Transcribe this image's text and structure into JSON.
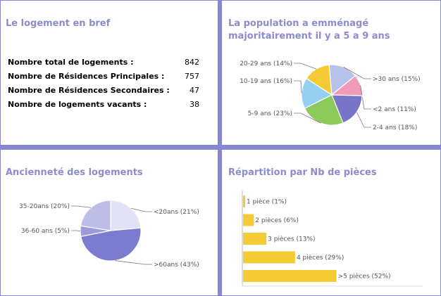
{
  "panels": {
    "summary": {
      "title": "Le logement en bref",
      "rows": [
        {
          "label": "Nombre total de logements :",
          "value": "842"
        },
        {
          "label": "Nombre de Résidences Principales :",
          "value": "757"
        },
        {
          "label": "Nombre de Résidences Secondaires :",
          "value": "47"
        },
        {
          "label": "Nombre de logements vacants :",
          "value": "38"
        }
      ]
    },
    "population": {
      "title": "La population a emménagé majoritairement il y a 5 a 9 ans"
    },
    "anciennete": {
      "title": "Ancienneté des logements"
    },
    "pieces": {
      "title": "Répartition par Nb de pièces"
    }
  },
  "chart_data": [
    {
      "type": "pie",
      "title": "La population a emménagé majoritairement il y a 5 a 9 ans",
      "labels": [
        "20-29 ans (14%)",
        ">30 ans (15%)",
        "<2 ans (11%)",
        "2-4 ans (18%)",
        "5-9 ans (23%)",
        "10-19 ans (16%)"
      ],
      "categories": [
        "20-29 ans",
        ">30 ans",
        "<2 ans",
        "2-4 ans",
        "5-9 ans",
        "10-19 ans"
      ],
      "values": [
        14,
        15,
        11,
        18,
        23,
        16
      ],
      "colors": [
        "#f5cb35",
        "#b7c2ea",
        "#f09cb8",
        "#7875c9",
        "#8ccb5b",
        "#96d0f0"
      ]
    },
    {
      "type": "pie",
      "title": "Ancienneté des logements",
      "labels": [
        "<20ans (21%)",
        ">60ans (43%)",
        "36-60 ans (5%)",
        "35-20ans (20%)"
      ],
      "categories": [
        "<20ans",
        ">60ans",
        "36-60 ans",
        "35-20ans"
      ],
      "values": [
        21,
        43,
        5,
        20
      ],
      "colors": [
        "#e2e2f6",
        "#7b7bcf",
        "#9c9cdc",
        "#bdbde8"
      ]
    },
    {
      "type": "bar",
      "orientation": "horizontal",
      "title": "Répartition par Nb de pièces",
      "categories": [
        "1 pièce",
        "2 pièces",
        "3 pièces",
        "4 pièces",
        ">5 pièces"
      ],
      "labels": [
        "1 pièce (1%)",
        "2 pièces (6%)",
        "3 pièces (13%)",
        "4 pièces (29%)",
        ">5 pièces (52%)"
      ],
      "values": [
        1,
        6,
        13,
        29,
        52
      ],
      "color": "#f5cb35"
    }
  ]
}
